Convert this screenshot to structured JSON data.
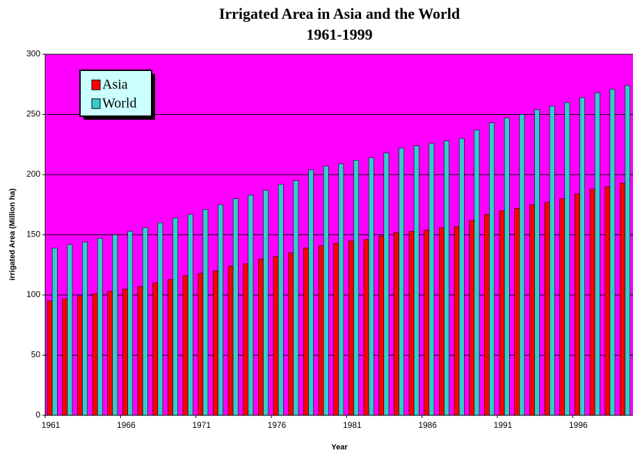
{
  "chart_data": {
    "type": "bar",
    "title": "Irrigated Area in Asia and the World",
    "subtitle": "1961-1999",
    "x_label": "Year",
    "y_label": "irrigated Area (Million ha)",
    "categories": [
      "1961",
      null,
      null,
      null,
      null,
      "1966",
      null,
      null,
      null,
      null,
      "1971",
      null,
      null,
      null,
      null,
      "1976",
      null,
      null,
      null,
      null,
      "1981",
      null,
      null,
      null,
      null,
      "1986",
      null,
      null,
      null,
      null,
      "1991",
      null,
      null,
      null,
      null,
      "1996",
      null,
      null,
      null
    ],
    "series": [
      {
        "name": "Asia",
        "color": "#ff0000",
        "values": [
          95,
          97,
          99,
          101,
          103,
          105,
          107,
          110,
          113,
          116,
          118,
          120,
          124,
          126,
          130,
          132,
          135,
          139,
          141,
          143,
          145,
          146,
          149,
          152,
          153,
          154,
          156,
          157,
          162,
          167,
          170,
          172,
          175,
          177,
          180,
          184,
          188,
          190,
          193
        ]
      },
      {
        "name": "World",
        "color": "#33cccc",
        "values": [
          139,
          142,
          144,
          147,
          150,
          153,
          156,
          160,
          164,
          167,
          171,
          175,
          180,
          183,
          187,
          192,
          195,
          204,
          207,
          209,
          212,
          214,
          218,
          222,
          224,
          226,
          228,
          230,
          237,
          243,
          247,
          250,
          254,
          257,
          260,
          264,
          268,
          271,
          274
        ]
      }
    ],
    "ylim": [
      0,
      300
    ],
    "yticks": [
      0,
      50,
      100,
      150,
      200,
      250,
      300
    ],
    "grid": true,
    "legend": "top-left",
    "background": "#ff00ff"
  }
}
